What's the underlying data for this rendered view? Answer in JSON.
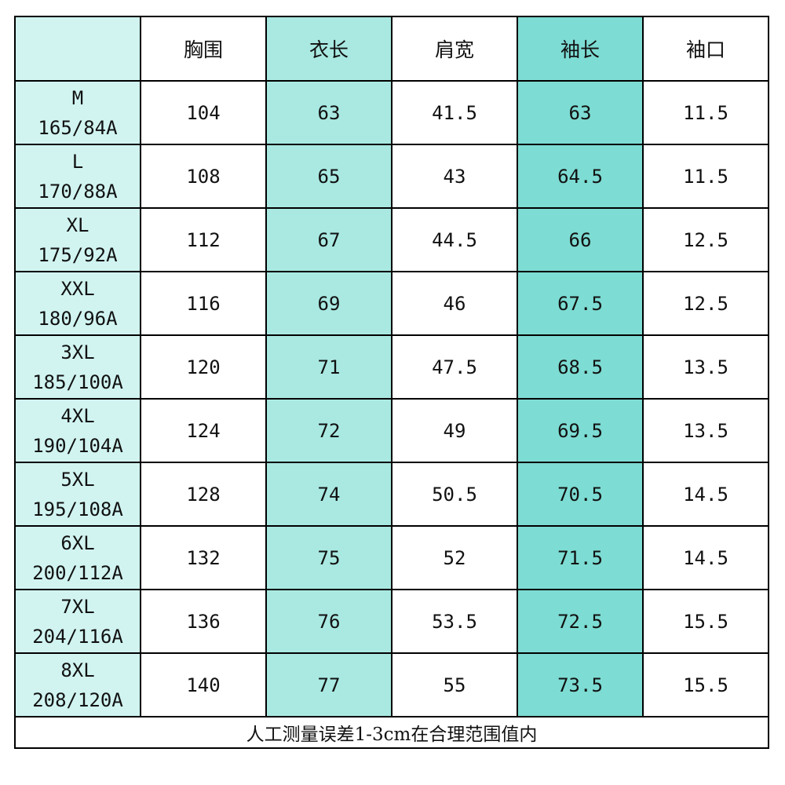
{
  "colors": {
    "size_column": "#d1f4f1",
    "length_column": "#a9e9e2",
    "sleeve_column": "#7ddcd3",
    "border": "#000000"
  },
  "table": {
    "headers": [
      "",
      "胸围",
      "衣长",
      "肩宽",
      "袖长",
      "袖口"
    ],
    "rows": [
      {
        "size": "M",
        "spec": "165/84A",
        "chest": "104",
        "length": "63",
        "shoulder": "41.5",
        "sleeve": "63",
        "cuff": "11.5"
      },
      {
        "size": "L",
        "spec": "170/88A",
        "chest": "108",
        "length": "65",
        "shoulder": "43",
        "sleeve": "64.5",
        "cuff": "11.5"
      },
      {
        "size": "XL",
        "spec": "175/92A",
        "chest": "112",
        "length": "67",
        "shoulder": "44.5",
        "sleeve": "66",
        "cuff": "12.5"
      },
      {
        "size": "XXL",
        "spec": "180/96A",
        "chest": "116",
        "length": "69",
        "shoulder": "46",
        "sleeve": "67.5",
        "cuff": "12.5"
      },
      {
        "size": "3XL",
        "spec": "185/100A",
        "chest": "120",
        "length": "71",
        "shoulder": "47.5",
        "sleeve": "68.5",
        "cuff": "13.5"
      },
      {
        "size": "4XL",
        "spec": "190/104A",
        "chest": "124",
        "length": "72",
        "shoulder": "49",
        "sleeve": "69.5",
        "cuff": "13.5"
      },
      {
        "size": "5XL",
        "spec": "195/108A",
        "chest": "128",
        "length": "74",
        "shoulder": "50.5",
        "sleeve": "70.5",
        "cuff": "14.5"
      },
      {
        "size": "6XL",
        "spec": "200/112A",
        "chest": "132",
        "length": "75",
        "shoulder": "52",
        "sleeve": "71.5",
        "cuff": "14.5"
      },
      {
        "size": "7XL",
        "spec": "204/116A",
        "chest": "136",
        "length": "76",
        "shoulder": "53.5",
        "sleeve": "72.5",
        "cuff": "15.5"
      },
      {
        "size": "8XL",
        "spec": "208/120A",
        "chest": "140",
        "length": "77",
        "shoulder": "55",
        "sleeve": "73.5",
        "cuff": "15.5"
      }
    ],
    "footer_note": "人工测量误差1-3cm在合理范围值内"
  }
}
